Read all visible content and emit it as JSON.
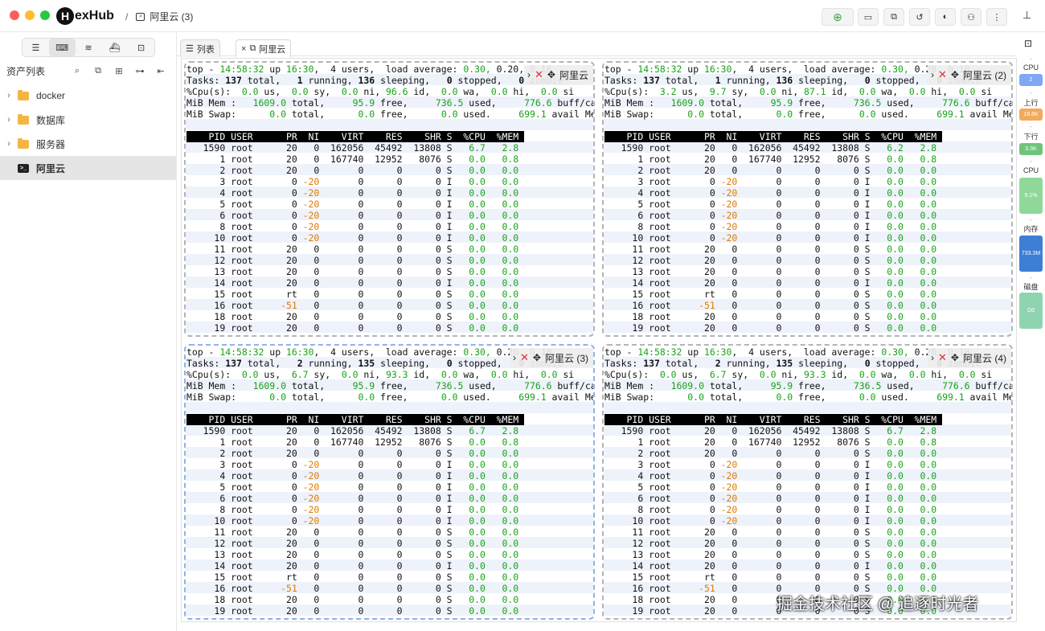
{
  "app": {
    "logo_letter": "H",
    "logo_rest": "exHub",
    "breadcrumb_sep": "/",
    "breadcrumb_icon": "terminal-icon",
    "breadcrumb": "阿里云 (3)"
  },
  "toolbar": {
    "buttons": [
      "plus-circle-icon",
      "monitor-icon",
      "folder-sync-icon",
      "history-icon",
      "theme-icon",
      "user-icon",
      "more-vertical-icon"
    ],
    "pin_icon": "pin-icon",
    "accent": "#3aa34a"
  },
  "sidebar": {
    "tabs": [
      "list-icon",
      "terminal-icon",
      "database-icon",
      "docker-icon",
      "remote-desktop-icon"
    ],
    "active_tab": 1,
    "asset_title": "资产列表",
    "actions": [
      "search-icon",
      "copy-icon",
      "folder-plus-icon",
      "link-icon",
      "collapse-icon"
    ],
    "tree": [
      {
        "label": "docker",
        "type": "folder"
      },
      {
        "label": "数据库",
        "type": "folder"
      },
      {
        "label": "服务器",
        "type": "folder"
      },
      {
        "label": "阿里云",
        "type": "terminal",
        "selected": true
      }
    ]
  },
  "tabs": [
    {
      "label": "列表",
      "icon": "list-icon"
    },
    {
      "label": "阿里云",
      "icon": "window-icon",
      "close": "×"
    }
  ],
  "panes": [
    {
      "title": "阿里云",
      "tasks_running": "1",
      "tasks_sleeping": "136",
      "cpu_sy": "0.0",
      "cpu_id": "96.6",
      "cpu_us": "0.0",
      "cpu_us_label": " us,",
      "cpu_sy_pad": "  ",
      "mem_used": "736.5",
      "top_cpu": "6.7",
      "focused": false
    },
    {
      "title": "阿里云 (2)",
      "tasks_running": "1",
      "tasks_sleeping": "136",
      "cpu_us": "3.2",
      "cpu_sy": "9.7",
      "cpu_id": "87.1",
      "mem_used": "736.5",
      "top_cpu": "6.2",
      "focused": false
    },
    {
      "title": "阿里云 (3)",
      "tasks_running": "2",
      "tasks_sleeping": "135",
      "cpu_us": "0.0",
      "cpu_sy": "6.7",
      "cpu_id": "93.3",
      "mem_used": "736.5",
      "top_cpu": "6.7",
      "focused": true
    },
    {
      "title": "阿里云 (4)",
      "tasks_running": "2",
      "tasks_sleeping": "135",
      "cpu_us": "0.0",
      "cpu_sy": "6.7",
      "cpu_id": "93.3",
      "mem_used": "736.5",
      "top_cpu": "6.7",
      "focused": false
    }
  ],
  "top": {
    "time": "14:58:32",
    "uptime": "16:30",
    "users": "4",
    "load_avg": "0.30,",
    "mem_total": "1609.0",
    "mem_free": "95.9",
    "mem_buff": "776.6",
    "swap_total": "0.0",
    "swap_free": "0.0",
    "swap_used": "0.0",
    "swap_avail": "699.1",
    "header": [
      "PID",
      "USER",
      "PR",
      "NI",
      "VIRT",
      "RES",
      "SHR",
      "S",
      "%CPU",
      "%MEM"
    ],
    "rows": [
      [
        "1590",
        "root",
        "20",
        "0",
        "162056",
        "45492",
        "13808",
        "S",
        "6.7",
        "2.8"
      ],
      [
        "1",
        "root",
        "20",
        "0",
        "167740",
        "12952",
        "8076",
        "S",
        "0.0",
        "0.8"
      ],
      [
        "2",
        "root",
        "20",
        "0",
        "0",
        "0",
        "0",
        "S",
        "0.0",
        "0.0"
      ],
      [
        "3",
        "root",
        "0",
        "-20",
        "0",
        "0",
        "0",
        "I",
        "0.0",
        "0.0"
      ],
      [
        "4",
        "root",
        "0",
        "-20",
        "0",
        "0",
        "0",
        "I",
        "0.0",
        "0.0"
      ],
      [
        "5",
        "root",
        "0",
        "-20",
        "0",
        "0",
        "0",
        "I",
        "0.0",
        "0.0"
      ],
      [
        "6",
        "root",
        "0",
        "-20",
        "0",
        "0",
        "0",
        "I",
        "0.0",
        "0.0"
      ],
      [
        "8",
        "root",
        "0",
        "-20",
        "0",
        "0",
        "0",
        "I",
        "0.0",
        "0.0"
      ],
      [
        "10",
        "root",
        "0",
        "-20",
        "0",
        "0",
        "0",
        "I",
        "0.0",
        "0.0"
      ],
      [
        "11",
        "root",
        "20",
        "0",
        "0",
        "0",
        "0",
        "S",
        "0.0",
        "0.0"
      ],
      [
        "12",
        "root",
        "20",
        "0",
        "0",
        "0",
        "0",
        "S",
        "0.0",
        "0.0"
      ],
      [
        "13",
        "root",
        "20",
        "0",
        "0",
        "0",
        "0",
        "S",
        "0.0",
        "0.0"
      ],
      [
        "14",
        "root",
        "20",
        "0",
        "0",
        "0",
        "0",
        "I",
        "0.0",
        "0.0"
      ],
      [
        "15",
        "root",
        "rt",
        "0",
        "0",
        "0",
        "0",
        "S",
        "0.0",
        "0.0"
      ],
      [
        "16",
        "root",
        "-51",
        "0",
        "0",
        "0",
        "0",
        "S",
        "0.0",
        "0.0"
      ],
      [
        "18",
        "root",
        "20",
        "0",
        "0",
        "0",
        "0",
        "S",
        "0.0",
        "0.0"
      ],
      [
        "19",
        "root",
        "20",
        "0",
        "0",
        "0",
        "0",
        "S",
        "0.0",
        "0.0"
      ]
    ]
  },
  "monitor": {
    "cpu_label": "CPU",
    "cpu_cores": "2",
    "up_label": "上行",
    "up_value": "18.8K",
    "down_label": "下行",
    "down_value": "3.3K",
    "cpu2_label": "CPU",
    "cpu_pct": "9.1%",
    "cpu_fill": 0.091,
    "mem_label": "内存",
    "mem_value": "733.3M",
    "disk_label": "磁盘",
    "disk_value": "G0",
    "tick": "-"
  },
  "watermark": "掘金技术社区 @ 追逐时光者"
}
